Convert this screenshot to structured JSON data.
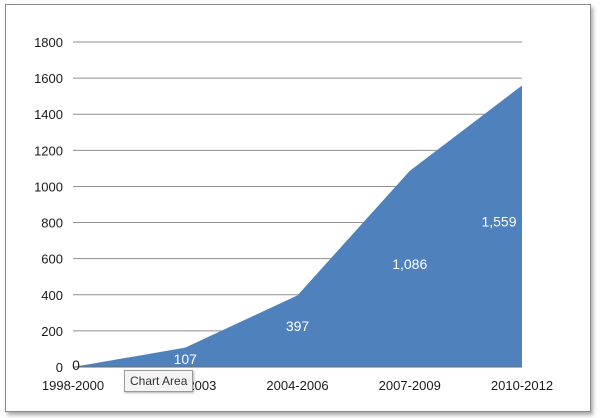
{
  "chart_data": {
    "type": "area",
    "categories": [
      "1998-2000",
      "2001-2003",
      "2004-2006",
      "2007-2009",
      "2010-2012"
    ],
    "values": [
      0,
      107,
      397,
      1086,
      1559
    ],
    "data_labels": [
      "0",
      "107",
      "397",
      "1,086",
      "1,559"
    ],
    "title": "",
    "xlabel": "",
    "ylabel": "",
    "ylim": [
      0,
      1800
    ],
    "yticks": [
      "0",
      "200",
      "400",
      "600",
      "800",
      "1000",
      "1200",
      "1400",
      "1600",
      "1800"
    ],
    "grid": true,
    "fill_color": "#4f81bd"
  },
  "tooltip": {
    "label": "Chart Area"
  }
}
